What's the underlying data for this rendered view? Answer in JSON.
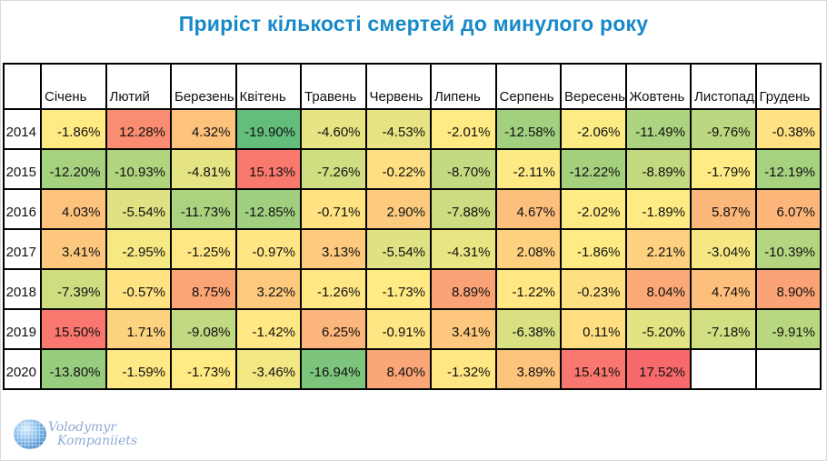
{
  "title": "Приріст кількості смертей до минулого року",
  "title_color": "#1789C9",
  "watermark": {
    "line1": "Volodymyr",
    "line2": "Kompaniiets",
    "color": "#8FAAD6"
  },
  "chart_data": {
    "type": "heatmap",
    "title": "Приріст кількості смертей до минулого року",
    "columns": [
      "Січень",
      "Лютий",
      "Березень",
      "Квітень",
      "Травень",
      "Червень",
      "Липень",
      "Серпень",
      "Вересень",
      "Жовтень",
      "Листопад",
      "Грудень"
    ],
    "rows": [
      "2014",
      "2015",
      "2016",
      "2017",
      "2018",
      "2019",
      "2020"
    ],
    "values": [
      [
        -1.86,
        12.28,
        4.32,
        -19.9,
        -4.6,
        -4.53,
        -2.01,
        -12.58,
        -2.06,
        -11.49,
        -9.76,
        -0.38
      ],
      [
        -12.2,
        -10.93,
        -4.81,
        15.13,
        -7.26,
        -0.22,
        -8.7,
        -2.11,
        -12.22,
        -8.89,
        -1.79,
        -12.19
      ],
      [
        4.03,
        -5.54,
        -11.73,
        -12.85,
        -0.71,
        2.9,
        -7.88,
        4.67,
        -2.02,
        -1.89,
        5.87,
        6.07
      ],
      [
        3.41,
        -2.95,
        -1.25,
        -0.97,
        3.13,
        -5.54,
        -4.31,
        2.08,
        -1.86,
        2.21,
        -3.04,
        -10.39
      ],
      [
        -7.39,
        -0.57,
        8.75,
        3.22,
        -1.26,
        -1.73,
        8.89,
        -1.22,
        -0.23,
        8.04,
        4.74,
        8.9
      ],
      [
        15.5,
        1.71,
        -9.08,
        -1.42,
        6.25,
        -0.91,
        3.41,
        -6.38,
        0.11,
        -5.2,
        -7.18,
        -9.91
      ],
      [
        -13.8,
        -1.59,
        -1.73,
        -3.46,
        -16.94,
        8.4,
        -1.32,
        3.89,
        15.41,
        17.52,
        null,
        null
      ]
    ],
    "value_suffix": "%",
    "value_decimals": 2,
    "empty_color": "#FFFFFF",
    "grid_color": "#000000",
    "color_scale": {
      "min": {
        "value": -19.9,
        "color": "#63BE7B"
      },
      "mid": {
        "value": -1.86,
        "color": "#FFEB84"
      },
      "max": {
        "value": 17.52,
        "color": "#F8696B"
      }
    }
  }
}
